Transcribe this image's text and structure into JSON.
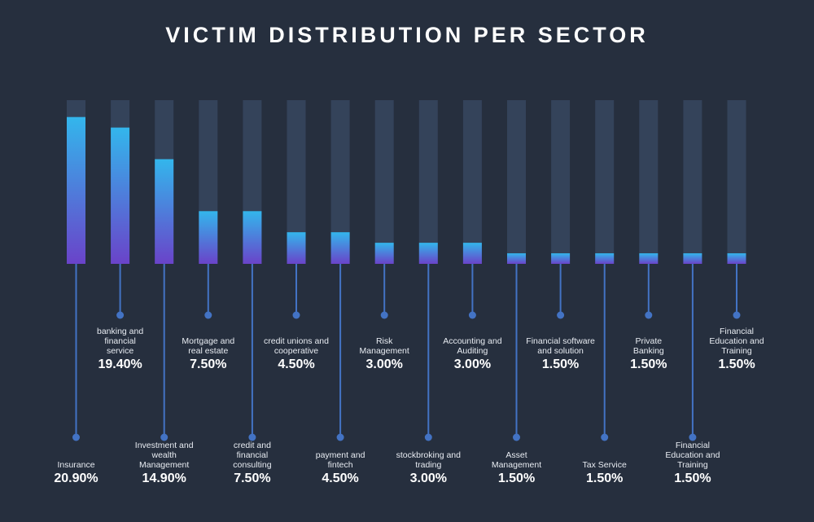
{
  "title": "VICTIM DISTRIBUTION PER SECTOR",
  "colors": {
    "background": "#262f3e",
    "track": "#34435a",
    "bar_top": "#33b6ec",
    "bar_bottom": "#6a43c9",
    "connector": "#4373c4"
  },
  "chart_data": {
    "type": "bar",
    "title": "VICTIM DISTRIBUTION PER SECTOR",
    "unit": "%",
    "categories": [
      "Insurance",
      "banking and financial service",
      "Investment and wealth Management",
      "Mortgage and real estate",
      "credit and financial consulting",
      "credit unions and cooperative",
      "payment and fintech",
      "Risk Management",
      "stockbroking and trading",
      "Accounting and Auditing",
      "Asset Management",
      "Financial software and solution",
      "Tax Service",
      "Private Banking",
      "Financial Education and Training",
      "Financial Education and Training"
    ],
    "values": [
      20.9,
      19.4,
      14.9,
      7.5,
      7.5,
      4.5,
      4.5,
      3.0,
      3.0,
      3.0,
      1.5,
      1.5,
      1.5,
      1.5,
      1.5,
      1.5
    ],
    "labels": [
      "20.90%",
      "19.40%",
      "14.90%",
      "7.50%",
      "7.50%",
      "4.50%",
      "4.50%",
      "3.00%",
      "3.00%",
      "3.00%",
      "1.50%",
      "1.50%",
      "1.50%",
      "1.50%",
      "1.50%",
      "1.50%"
    ],
    "name_lines": [
      [
        "Insurance"
      ],
      [
        "banking and",
        "financial",
        "service"
      ],
      [
        "Investment and",
        "wealth",
        "Management"
      ],
      [
        "Mortgage and",
        "real estate"
      ],
      [
        "credit and",
        "financial",
        "consulting"
      ],
      [
        "credit unions and",
        "cooperative"
      ],
      [
        "payment and",
        "fintech"
      ],
      [
        "Risk",
        "Management"
      ],
      [
        "stockbroking and",
        "trading"
      ],
      [
        "Accounting and",
        "Auditing"
      ],
      [
        "Asset",
        "Management"
      ],
      [
        "Financial software",
        "and solution"
      ],
      [
        "Tax Service"
      ],
      [
        "Private",
        "Banking"
      ],
      [
        "Financial",
        "Education and",
        "Training"
      ],
      [
        "Financial",
        "Education and",
        "Training"
      ]
    ],
    "grid": false,
    "legend": "none"
  }
}
